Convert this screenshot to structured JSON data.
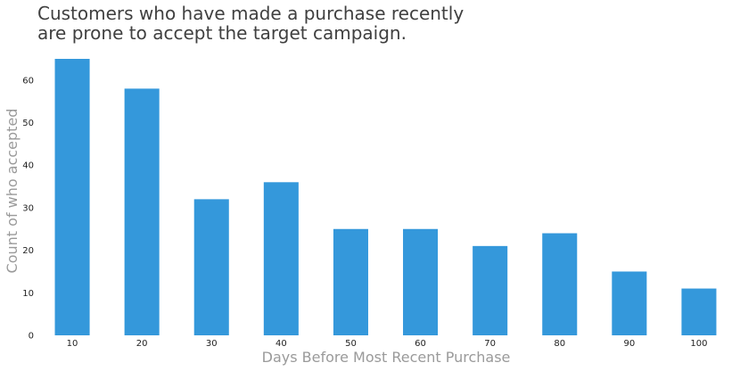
{
  "chart_data": {
    "type": "bar",
    "title_lines": [
      "Customers who have made a purchase recently",
      "are prone to accept the target campaign."
    ],
    "xlabel": "Days Before Most Recent Purchase",
    "ylabel": "Count of who accepted",
    "categories": [
      "10",
      "20",
      "30",
      "40",
      "50",
      "60",
      "70",
      "80",
      "90",
      "100"
    ],
    "values": [
      65,
      58,
      32,
      36,
      25,
      25,
      21,
      24,
      15,
      11
    ],
    "ylim": [
      0,
      65
    ],
    "yticks": [
      0,
      10,
      20,
      30,
      40,
      50,
      60
    ],
    "bar_color": "#3498db",
    "grid": false,
    "legend": "none"
  }
}
